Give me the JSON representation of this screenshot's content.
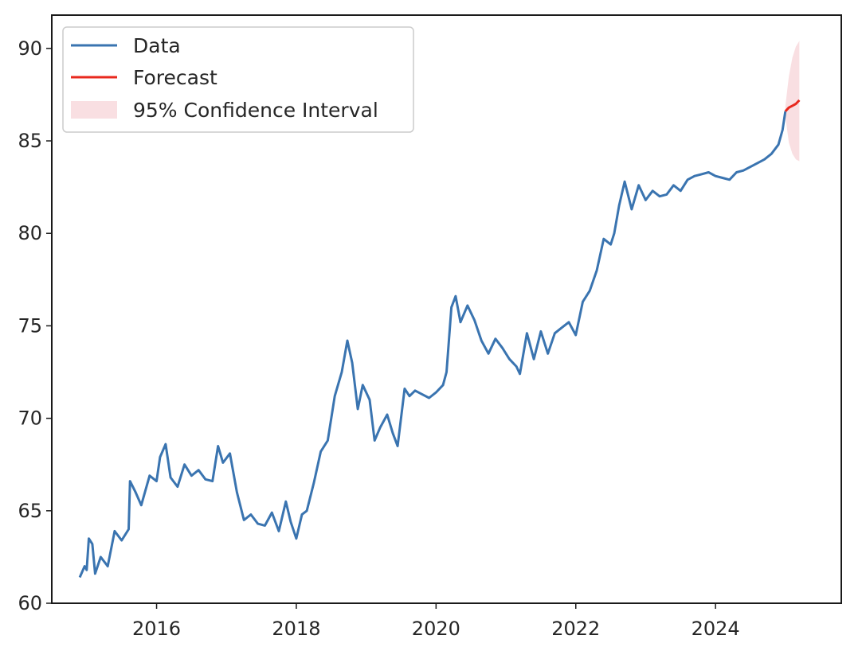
{
  "chart_data": {
    "type": "line",
    "title": "",
    "xlabel": "",
    "ylabel": "",
    "xlim": [
      2014.5,
      2025.8
    ],
    "ylim": [
      60,
      91.8
    ],
    "x_ticks": [
      2016,
      2018,
      2020,
      2022,
      2024
    ],
    "y_ticks": [
      60,
      65,
      70,
      75,
      80,
      85,
      90
    ],
    "grid": false,
    "legend": {
      "position": "upper-left",
      "entries": [
        "Data",
        "Forecast",
        "95% Confidence Interval"
      ]
    },
    "colors": {
      "data": "#3a74b0",
      "forecast": "#e8281e",
      "confidence_interval": "#f7d4d8"
    },
    "series": [
      {
        "name": "Data",
        "points": [
          [
            2014.9,
            61.4
          ],
          [
            2014.97,
            62.0
          ],
          [
            2015.0,
            61.8
          ],
          [
            2015.03,
            63.5
          ],
          [
            2015.08,
            63.2
          ],
          [
            2015.12,
            61.6
          ],
          [
            2015.2,
            62.5
          ],
          [
            2015.3,
            62.0
          ],
          [
            2015.4,
            63.9
          ],
          [
            2015.5,
            63.4
          ],
          [
            2015.6,
            64.0
          ],
          [
            2015.62,
            66.6
          ],
          [
            2015.7,
            66.0
          ],
          [
            2015.78,
            65.3
          ],
          [
            2015.9,
            66.9
          ],
          [
            2016.0,
            66.6
          ],
          [
            2016.05,
            67.9
          ],
          [
            2016.13,
            68.6
          ],
          [
            2016.2,
            66.8
          ],
          [
            2016.3,
            66.3
          ],
          [
            2016.4,
            67.5
          ],
          [
            2016.5,
            66.9
          ],
          [
            2016.6,
            67.2
          ],
          [
            2016.7,
            66.7
          ],
          [
            2016.8,
            66.6
          ],
          [
            2016.88,
            68.5
          ],
          [
            2016.95,
            67.6
          ],
          [
            2017.05,
            68.1
          ],
          [
            2017.15,
            66.0
          ],
          [
            2017.25,
            64.5
          ],
          [
            2017.35,
            64.8
          ],
          [
            2017.45,
            64.3
          ],
          [
            2017.55,
            64.2
          ],
          [
            2017.65,
            64.9
          ],
          [
            2017.75,
            63.9
          ],
          [
            2017.85,
            65.5
          ],
          [
            2017.92,
            64.4
          ],
          [
            2018.0,
            63.5
          ],
          [
            2018.08,
            64.8
          ],
          [
            2018.15,
            65.0
          ],
          [
            2018.25,
            66.5
          ],
          [
            2018.35,
            68.2
          ],
          [
            2018.45,
            68.8
          ],
          [
            2018.55,
            71.2
          ],
          [
            2018.65,
            72.5
          ],
          [
            2018.73,
            74.2
          ],
          [
            2018.8,
            73.0
          ],
          [
            2018.88,
            70.5
          ],
          [
            2018.95,
            71.8
          ],
          [
            2019.05,
            71.0
          ],
          [
            2019.12,
            68.8
          ],
          [
            2019.2,
            69.5
          ],
          [
            2019.3,
            70.2
          ],
          [
            2019.38,
            69.2
          ],
          [
            2019.45,
            68.5
          ],
          [
            2019.55,
            71.6
          ],
          [
            2019.62,
            71.2
          ],
          [
            2019.7,
            71.5
          ],
          [
            2019.8,
            71.3
          ],
          [
            2019.9,
            71.1
          ],
          [
            2020.0,
            71.4
          ],
          [
            2020.1,
            71.8
          ],
          [
            2020.15,
            72.5
          ],
          [
            2020.22,
            76.0
          ],
          [
            2020.28,
            76.6
          ],
          [
            2020.35,
            75.2
          ],
          [
            2020.45,
            76.1
          ],
          [
            2020.55,
            75.3
          ],
          [
            2020.65,
            74.2
          ],
          [
            2020.75,
            73.5
          ],
          [
            2020.85,
            74.3
          ],
          [
            2020.95,
            73.8
          ],
          [
            2021.05,
            73.2
          ],
          [
            2021.15,
            72.8
          ],
          [
            2021.2,
            72.4
          ],
          [
            2021.3,
            74.6
          ],
          [
            2021.4,
            73.2
          ],
          [
            2021.5,
            74.7
          ],
          [
            2021.6,
            73.5
          ],
          [
            2021.7,
            74.6
          ],
          [
            2021.8,
            74.9
          ],
          [
            2021.9,
            75.2
          ],
          [
            2022.0,
            74.5
          ],
          [
            2022.1,
            76.3
          ],
          [
            2022.2,
            76.9
          ],
          [
            2022.3,
            78.0
          ],
          [
            2022.4,
            79.7
          ],
          [
            2022.5,
            79.4
          ],
          [
            2022.55,
            80.0
          ],
          [
            2022.62,
            81.5
          ],
          [
            2022.7,
            82.8
          ],
          [
            2022.8,
            81.3
          ],
          [
            2022.9,
            82.6
          ],
          [
            2023.0,
            81.8
          ],
          [
            2023.1,
            82.3
          ],
          [
            2023.2,
            82.0
          ],
          [
            2023.3,
            82.1
          ],
          [
            2023.4,
            82.6
          ],
          [
            2023.5,
            82.3
          ],
          [
            2023.6,
            82.9
          ],
          [
            2023.7,
            83.1
          ],
          [
            2023.8,
            83.2
          ],
          [
            2023.9,
            83.3
          ],
          [
            2024.0,
            83.1
          ],
          [
            2024.1,
            83.0
          ],
          [
            2024.2,
            82.9
          ],
          [
            2024.3,
            83.3
          ],
          [
            2024.4,
            83.4
          ],
          [
            2024.5,
            83.6
          ],
          [
            2024.6,
            83.8
          ],
          [
            2024.7,
            84.0
          ],
          [
            2024.8,
            84.3
          ],
          [
            2024.9,
            84.8
          ],
          [
            2024.96,
            85.6
          ],
          [
            2025.0,
            86.6
          ]
        ]
      },
      {
        "name": "Forecast",
        "points": [
          [
            2025.0,
            86.6
          ],
          [
            2025.05,
            86.8
          ],
          [
            2025.1,
            86.9
          ],
          [
            2025.15,
            87.0
          ],
          [
            2025.2,
            87.2
          ]
        ]
      }
    ],
    "confidence_interval": {
      "name": "95% Confidence Interval",
      "x": [
        2025.0,
        2025.05,
        2025.1,
        2025.15,
        2025.2
      ],
      "lower": [
        86.3,
        84.9,
        84.3,
        84.0,
        83.9
      ],
      "upper": [
        86.9,
        88.5,
        89.5,
        90.1,
        90.4
      ]
    }
  }
}
